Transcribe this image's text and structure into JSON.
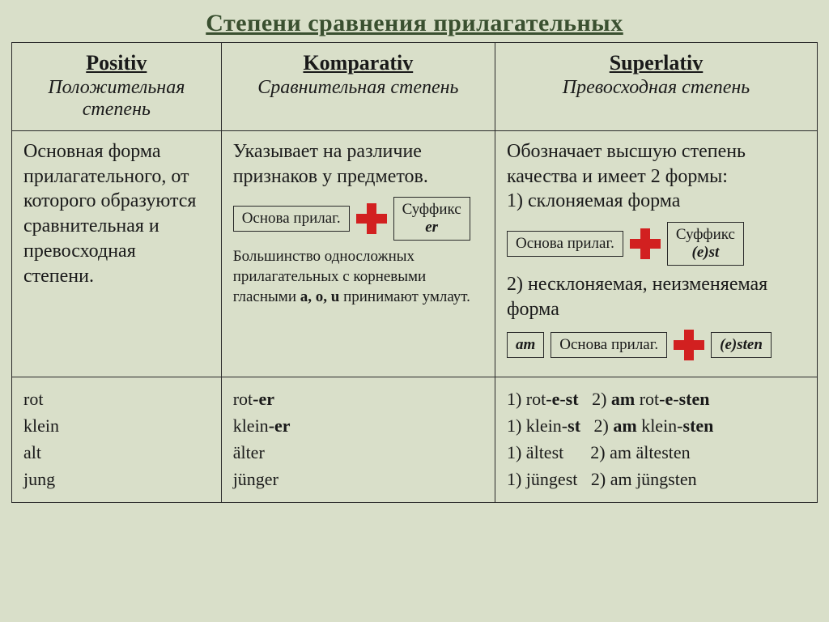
{
  "title": "Степени сравнения прилагательных",
  "columns": {
    "positiv": {
      "title": "Positiv",
      "subtitle": "Положительная степень"
    },
    "komparativ": {
      "title": "Komparativ",
      "subtitle": "Сравнительная степень"
    },
    "superlativ": {
      "title": "Superlativ",
      "subtitle": "Превосходная степень"
    }
  },
  "row_desc": {
    "positiv": "Основная форма прилагательного, от которого образуются сравнительная и превосходная степени.",
    "komparativ": {
      "text": "Указывает на различие признаков у предметов.",
      "formula": {
        "left": "Основа прилаг.",
        "right_top": "Суффикс",
        "right_suffix": "er"
      },
      "note_pre": "Большинство односложных прилагательных с корневыми гласными ",
      "note_bold": "a, o, u",
      "note_post": " принимают умлаут."
    },
    "superlativ": {
      "intro": "Обозначает высшую степень качества и имеет 2 формы:",
      "item1": "1) склоняемая форма",
      "formula1": {
        "left": "Основа прилаг.",
        "right_top": "Суффикс",
        "right_suffix": "(e)st"
      },
      "item2": "2) несклоняемая, неизменяемая форма",
      "formula2": {
        "a": "am",
        "b": "Основа прилаг.",
        "c": "(e)sten"
      }
    }
  },
  "examples": {
    "positiv": [
      "rot",
      "klein",
      "alt",
      "jung"
    ],
    "komparativ": [
      {
        "base": "rot",
        "suffix": "-er"
      },
      {
        "base": "klein",
        "suffix": "-er"
      },
      {
        "base": "älter",
        "suffix": ""
      },
      {
        "base": "jünger",
        "suffix": ""
      }
    ],
    "superlativ": [
      "1) rot-<b>e</b>-<b>st</b>   2) <b>am</b> rot-<b>e</b>-<b>sten</b>",
      "1) klein-<b>st</b>   2) <b>am</b> klein-<b>sten</b>",
      "1) ältest      2) am ältesten",
      "1) jüngest   2) am jüngsten"
    ]
  },
  "style": {
    "background": "#d9dfc9",
    "border_color": "#2a2a2a",
    "title_color": "#3a5030",
    "plus_color": "#d22020",
    "font_family": "Times New Roman"
  }
}
